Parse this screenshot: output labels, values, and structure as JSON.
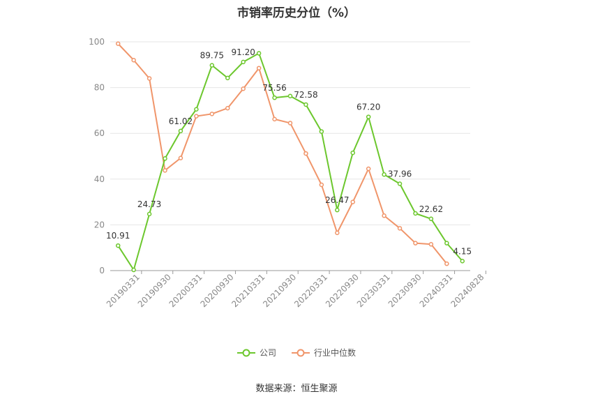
{
  "chart_data": {
    "type": "line",
    "title": "市销率历史分位（%）",
    "source": "数据来源：恒生聚源",
    "ylim": [
      0,
      100
    ],
    "yticks": [
      0,
      20,
      40,
      60,
      80,
      100
    ],
    "xtick_labels": [
      "20190331",
      "20190930",
      "20200331",
      "20200930",
      "20210331",
      "20210930",
      "20220331",
      "20220930",
      "20230331",
      "20230930",
      "20240331",
      "20240828"
    ],
    "grid": true,
    "legend_position": "bottom",
    "series": [
      {
        "name": "公司",
        "color": "#6cc72d",
        "values": [
          10.91,
          0.3,
          24.73,
          49.0,
          61.02,
          70.5,
          89.75,
          84.2,
          91.2,
          95.0,
          75.56,
          76.3,
          72.58,
          60.8,
          26.47,
          51.5,
          67.2,
          42.0,
          37.96,
          25.0,
          22.62,
          12.0,
          4.15
        ],
        "labels": {
          "0": "10.91",
          "2": "24.73",
          "4": "61.02",
          "6": "89.75",
          "8": "91.20",
          "10": "75.56",
          "12": "72.58",
          "14": "26.47",
          "16": "67.20",
          "18": "37.96",
          "20": "22.62",
          "22": "4.15"
        }
      },
      {
        "name": "行业中位数",
        "color": "#f0956a",
        "values": [
          99.2,
          92.0,
          84.0,
          43.8,
          49.2,
          67.5,
          68.5,
          71.0,
          79.5,
          88.5,
          66.2,
          64.5,
          51.2,
          37.5,
          16.5,
          30.0,
          44.5,
          24.0,
          18.5,
          12.0,
          11.5,
          3.0,
          null
        ]
      }
    ]
  }
}
